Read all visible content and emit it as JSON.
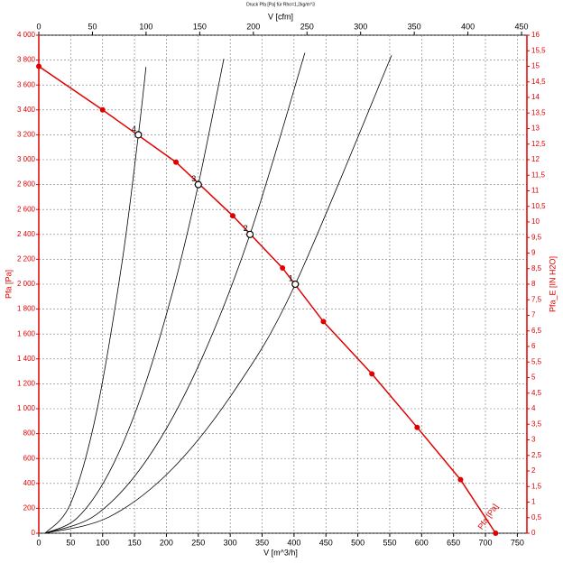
{
  "chart_data": {
    "type": "line",
    "title": "Druck Pfa [Pa] für Rho=1,2kg/m^3",
    "x_label": "V [m^3/h]",
    "x2_label": "V [cfm]",
    "y_label": "Pfa [Pa]",
    "y2_label": "Pfa_E [IN H2O]",
    "grid": true,
    "xlim": [
      0,
      765
    ],
    "xticks": [
      0,
      50,
      100,
      150,
      200,
      250,
      300,
      350,
      400,
      450,
      500,
      550,
      600,
      650,
      700,
      750
    ],
    "x2lim": [
      0,
      455
    ],
    "x2ticks": [
      0,
      50,
      100,
      150,
      200,
      250,
      300,
      350,
      400,
      450
    ],
    "ylim": [
      0,
      4000
    ],
    "yticks": [
      0,
      200,
      400,
      600,
      800,
      {
        "value": 1000,
        "label": "1 000"
      },
      {
        "value": 1200,
        "label": "1 200"
      },
      {
        "value": 1400,
        "label": "1 400"
      },
      {
        "value": 1600,
        "label": "1 600"
      },
      {
        "value": 1800,
        "label": "1 800"
      },
      {
        "value": 2000,
        "label": "2 000"
      },
      {
        "value": 2200,
        "label": "2 200"
      },
      {
        "value": 2400,
        "label": "2 400"
      },
      {
        "value": 2600,
        "label": "2 600"
      },
      {
        "value": 2800,
        "label": "2 800"
      },
      {
        "value": 3000,
        "label": "3 000"
      },
      {
        "value": 3200,
        "label": "3 200"
      },
      {
        "value": 3400,
        "label": "3 400"
      },
      {
        "value": 3600,
        "label": "3 600"
      },
      {
        "value": 3800,
        "label": "3 800"
      },
      {
        "value": 4000,
        "label": "4 000"
      }
    ],
    "y2lim": [
      0,
      16
    ],
    "y2ticks": [
      0,
      {
        "value": 0.5,
        "label": "0,5"
      },
      1,
      {
        "value": 1.5,
        "label": "1,5"
      },
      2,
      {
        "value": 2.5,
        "label": "2,5"
      },
      3,
      {
        "value": 3.5,
        "label": "3,5"
      },
      4,
      {
        "value": 4.5,
        "label": "4,5"
      },
      5,
      {
        "value": 5.5,
        "label": "5,5"
      },
      6,
      {
        "value": 6.5,
        "label": "6,5"
      },
      7,
      {
        "value": 7.5,
        "label": "7,5"
      },
      8,
      {
        "value": 8.5,
        "label": "8,5"
      },
      9,
      {
        "value": 9.5,
        "label": "9,5"
      },
      10,
      {
        "value": 10.5,
        "label": "10,5"
      },
      11,
      {
        "value": 11.5,
        "label": "11,5"
      },
      12,
      {
        "value": 12.5,
        "label": "12,5"
      },
      13,
      {
        "value": 13.5,
        "label": "13,5"
      },
      14,
      {
        "value": 14.5,
        "label": "14,5"
      },
      15,
      {
        "value": 15.5,
        "label": "15,5"
      },
      16
    ],
    "series": [
      {
        "name": "Pfa [Pa]",
        "color": "#e00000",
        "x": [
          0,
          100,
          215,
          304,
          382,
          446,
          522,
          593,
          661,
          716
        ],
        "values": [
          3750,
          3400,
          2980,
          2550,
          2130,
          1700,
          1280,
          850,
          430,
          0
        ]
      }
    ],
    "system_curves": [
      {
        "color": "#000000",
        "x": [
          10,
          50,
          90,
          130,
          156,
          168
        ],
        "values": [
          0,
          240,
          960,
          2160,
          3197,
          3745
        ]
      },
      {
        "color": "#000000",
        "x": [
          10,
          60,
          110,
          160,
          210,
          250,
          290
        ],
        "values": [
          0,
          122,
          486,
          1094,
          1944,
          2800,
          3810
        ]
      },
      {
        "color": "#000000",
        "x": [
          10,
          90,
          170,
          250,
          331,
          417
        ],
        "values": [
          0,
          149,
          596,
          1342,
          2400,
          3858
        ]
      },
      {
        "color": "#000000",
        "x": [
          10,
          110,
          210,
          310,
          402,
          553
        ],
        "values": [
          0,
          130,
          521,
          1172,
          2000,
          3839
        ]
      }
    ],
    "operating_points": {
      "x": [
        156,
        250,
        331,
        402
      ],
      "values": [
        3200,
        2800,
        2400,
        2000
      ],
      "labels": [
        "4",
        "3",
        "2",
        "1"
      ]
    }
  }
}
